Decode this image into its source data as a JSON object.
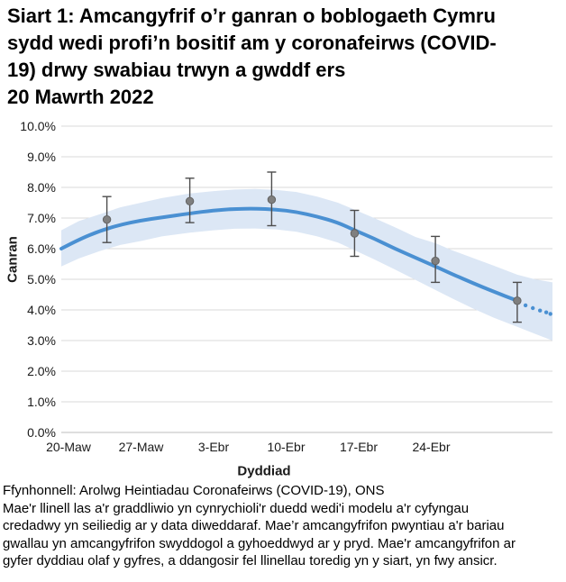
{
  "chart_data": {
    "type": "line",
    "title": "Siart 1: Amcangyfrif o’r ganran o boblogaeth Cymru\nsydd wedi profi’n bositif am y coronafeirws (COVID-\n19) drwy swabiau trwyn a gwddf ers\n20 Mawrth 2022",
    "xlabel": "Dyddiad",
    "ylabel": "Canran",
    "ylim": [
      0,
      10
    ],
    "x_domain_days": [
      -0.7,
      46.7
    ],
    "grid": "horizontal",
    "y_ticks": [
      {
        "value": 0,
        "label": "0.0%"
      },
      {
        "value": 1,
        "label": "1.0%"
      },
      {
        "value": 2,
        "label": "2.0%"
      },
      {
        "value": 3,
        "label": "3.0%"
      },
      {
        "value": 4,
        "label": "4.0%"
      },
      {
        "value": 5,
        "label": "5.0%"
      },
      {
        "value": 6,
        "label": "6.0%"
      },
      {
        "value": 7,
        "label": "7.0%"
      },
      {
        "value": 8,
        "label": "8.0%"
      },
      {
        "value": 9,
        "label": "9.0%"
      },
      {
        "value": 10,
        "label": "10.0%"
      }
    ],
    "x_ticks": [
      {
        "day": 0,
        "label": "20-Maw"
      },
      {
        "day": 7,
        "label": "27-Maw"
      },
      {
        "day": 14,
        "label": "3-Ebr"
      },
      {
        "day": 21,
        "label": "10-Ebr"
      },
      {
        "day": 28,
        "label": "17-Ebr"
      },
      {
        "day": 35,
        "label": "24-Ebr"
      }
    ],
    "trend": [
      [
        -0.7,
        6.0
      ],
      [
        1,
        6.3
      ],
      [
        3,
        6.58
      ],
      [
        5,
        6.78
      ],
      [
        7,
        6.92
      ],
      [
        9,
        7.02
      ],
      [
        11.7,
        7.15
      ],
      [
        14,
        7.25
      ],
      [
        16,
        7.3
      ],
      [
        18,
        7.31
      ],
      [
        20,
        7.28
      ],
      [
        22,
        7.2
      ],
      [
        24,
        7.05
      ],
      [
        26,
        6.85
      ],
      [
        27.6,
        6.6
      ],
      [
        29.5,
        6.33
      ],
      [
        31.5,
        6.0
      ],
      [
        33.5,
        5.7
      ],
      [
        35.4,
        5.42
      ],
      [
        37,
        5.17
      ],
      [
        39,
        4.88
      ],
      [
        41,
        4.6
      ],
      [
        43.3,
        4.3
      ]
    ],
    "trend_dotted": [
      [
        44.1,
        4.15
      ],
      [
        44.8,
        4.06
      ],
      [
        45.5,
        3.98
      ],
      [
        46.1,
        3.92
      ],
      [
        46.5,
        3.87
      ]
    ],
    "band": [
      [
        -0.7,
        5.42,
        6.6
      ],
      [
        1,
        5.68,
        6.9
      ],
      [
        3,
        5.92,
        7.12
      ],
      [
        5,
        6.12,
        7.35
      ],
      [
        7,
        6.25,
        7.5
      ],
      [
        9,
        6.4,
        7.65
      ],
      [
        11.7,
        6.52,
        7.8
      ],
      [
        14,
        6.6,
        7.88
      ],
      [
        16,
        6.65,
        7.93
      ],
      [
        18,
        6.66,
        7.95
      ],
      [
        20,
        6.63,
        7.92
      ],
      [
        22,
        6.55,
        7.85
      ],
      [
        24,
        6.4,
        7.7
      ],
      [
        26,
        6.2,
        7.5
      ],
      [
        27.6,
        5.95,
        7.27
      ],
      [
        29.5,
        5.65,
        7.0
      ],
      [
        31.5,
        5.32,
        6.7
      ],
      [
        33.5,
        4.98,
        6.38
      ],
      [
        35.4,
        4.65,
        6.18
      ],
      [
        37,
        4.38,
        5.95
      ],
      [
        39,
        4.05,
        5.7
      ],
      [
        41,
        3.75,
        5.45
      ],
      [
        43.3,
        3.45,
        5.15
      ],
      [
        45,
        3.22,
        5.0
      ],
      [
        46.7,
        3.0,
        4.9
      ]
    ],
    "points": [
      {
        "day": 3.7,
        "value": 6.95,
        "lo": 6.2,
        "hi": 7.7
      },
      {
        "day": 11.7,
        "value": 7.55,
        "lo": 6.85,
        "hi": 8.3
      },
      {
        "day": 19.6,
        "value": 7.6,
        "lo": 6.75,
        "hi": 8.5
      },
      {
        "day": 27.6,
        "value": 6.5,
        "lo": 5.75,
        "hi": 7.25
      },
      {
        "day": 35.4,
        "value": 5.6,
        "lo": 4.9,
        "hi": 6.4
      },
      {
        "day": 43.3,
        "value": 4.3,
        "lo": 3.6,
        "hi": 4.9
      }
    ],
    "legend": "none"
  },
  "footer": {
    "source": "Ffynhonnell: Arolwg Heintiadau Coronafeirws (COVID-19), ONS",
    "note": "Mae'r llinell las a'r graddliwio yn cynrychioli'r duedd wedi'i modelu a'r cyfyngau\ncredadwy yn seiliedig ar y data diweddaraf. Mae’r amcangyfrifon pwyntiau a'r bariau\ngwallau yn amcangyfrifon swyddogol a gyhoeddwyd ar y pryd. Mae'r amcangyfrifon ar\ngyfer dyddiau olaf y gyfres, a ddangosir fel llinellau toredig yn y siart, yn fwy ansicr."
  },
  "colors": {
    "trend": "#4a90d2",
    "band": "#dce7f5",
    "point_fill": "#7f7f7f",
    "point_stroke": "#636363",
    "error_bar": "#4d4d4d",
    "gridline": "#d9d9d9",
    "axis_line": "#bdbdbd",
    "tick_text": "#1a1a1a"
  }
}
